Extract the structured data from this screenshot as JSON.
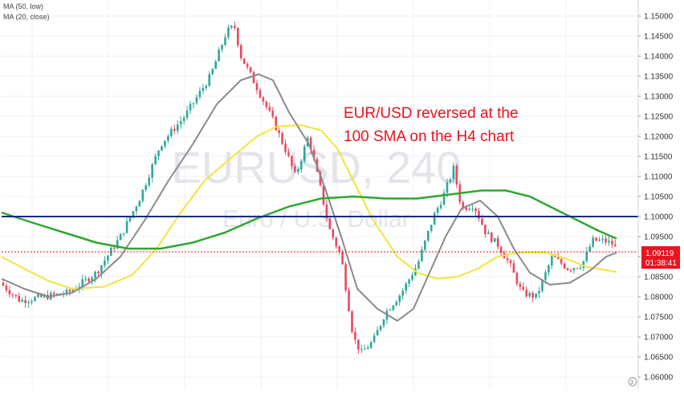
{
  "chart_data": {
    "type": "candlestick",
    "symbol_watermark": "EURUSD, 240",
    "description_watermark": "Euro / U.S. Dollar",
    "indicators": [
      {
        "label": "MA (50, low)"
      },
      {
        "label": "MA (20, close)"
      }
    ],
    "annotation": {
      "lines": [
        "EUR/USD reversed at the",
        "100 SMA on the H4 chart"
      ],
      "color": "#e8141f"
    },
    "y_axis": {
      "ticks": [
        "1.15000",
        "1.14500",
        "1.14000",
        "1.13500",
        "1.13000",
        "1.12500",
        "1.12000",
        "1.11500",
        "1.11000",
        "1.10500",
        "1.10000",
        "1.09500",
        "1.09000",
        "1.08500",
        "1.08000",
        "1.07500",
        "1.07000",
        "1.06500",
        "1.06000"
      ],
      "range": [
        1.058,
        1.1525
      ]
    },
    "price_label": {
      "value": "1.09119",
      "countdown": "01:38:41",
      "color": "#e8141f",
      "price": 1.09119
    },
    "horizontal_level": {
      "price": 1.1,
      "color": "#0b2a8a"
    },
    "colors": {
      "up": "#2ea89a",
      "down": "#e84a5f",
      "ma_50_low": "#f2e53a",
      "ma_20_close": "#8a8a8e",
      "ma_100": "#2ea82e",
      "grid": "#eef0f3"
    },
    "corner_icon": "tradingview-logo-icon"
  }
}
